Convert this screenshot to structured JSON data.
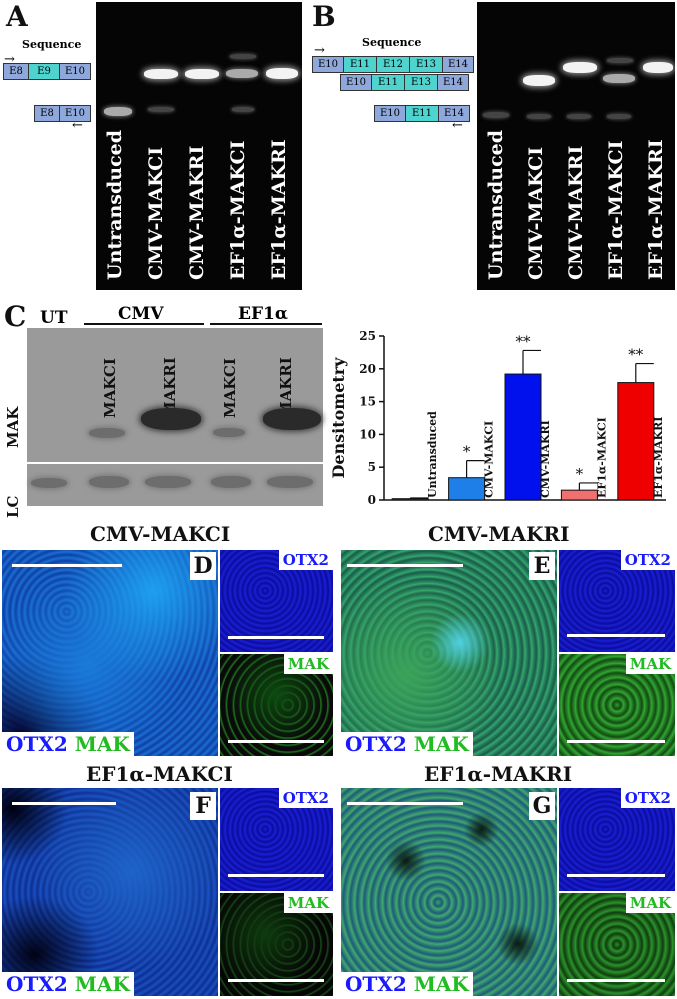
{
  "panels": {
    "A": "A",
    "B": "B",
    "C": "C",
    "D": "D",
    "E": "E",
    "F": "F",
    "G": "G"
  },
  "gel_a": {
    "sequence_label": "Sequence",
    "top_exons": [
      "E8",
      "E9",
      "E10"
    ],
    "bottom_exons": [
      "E8",
      "E10"
    ],
    "lanes": [
      "Untransduced",
      "CMV-MAKCI",
      "CMV-MAKRI",
      "EF1α-MAKCI",
      "EF1α-MAKRI"
    ]
  },
  "gel_b": {
    "sequence_label": "Sequence",
    "row1_exons": [
      "E10",
      "E11",
      "E12",
      "E13",
      "E14"
    ],
    "row2_exons": [
      "E10",
      "E11",
      "E13",
      "E14"
    ],
    "row3_exons": [
      "E10",
      "E11",
      "E14"
    ],
    "lanes": [
      "Untransduced",
      "CMV-MAKCI",
      "CMV-MAKRI",
      "EF1α-MAKCI",
      "EF1α-MAKRI"
    ]
  },
  "blot": {
    "ut": "UT",
    "group_cmv": "CMV",
    "group_ef1a": "EF1α",
    "row_mak": "MAK",
    "row_lc": "LC",
    "lane_labels": [
      "MAKCI",
      "MAKRI",
      "MAKCI",
      "MAKRI"
    ]
  },
  "chart_data": {
    "type": "bar",
    "ylabel": "Densitometry",
    "ylim": [
      0,
      25
    ],
    "yticks": [
      0,
      5,
      10,
      15,
      20,
      25
    ],
    "categories": [
      "Untransduced",
      "CMV-MAKCI",
      "CMV-MAKRI",
      "EF1α-MAKCI",
      "EF1α-MAKRI"
    ],
    "values": [
      0.2,
      3.4,
      19.2,
      1.5,
      17.9
    ],
    "errors": [
      0.1,
      2.6,
      3.6,
      1.1,
      2.9
    ],
    "significance": [
      "",
      "*",
      "**",
      "*",
      "**"
    ],
    "colors": [
      "#444444",
      "#1e7fe8",
      "#0011ee",
      "#f07070",
      "#ee0000"
    ]
  },
  "micro": {
    "d_title": "CMV-MAKCI",
    "e_title": "CMV-MAKRI",
    "f_title": "EF1α-MAKCI",
    "g_title": "EF1α-MAKRI",
    "stain_otx2": "OTX2",
    "stain_mak": "MAK",
    "chan_otx2": "OTX2",
    "chan_mak": "MAK",
    "colors": {
      "otx2": "#1a1aff",
      "mak": "#22bb22"
    }
  }
}
